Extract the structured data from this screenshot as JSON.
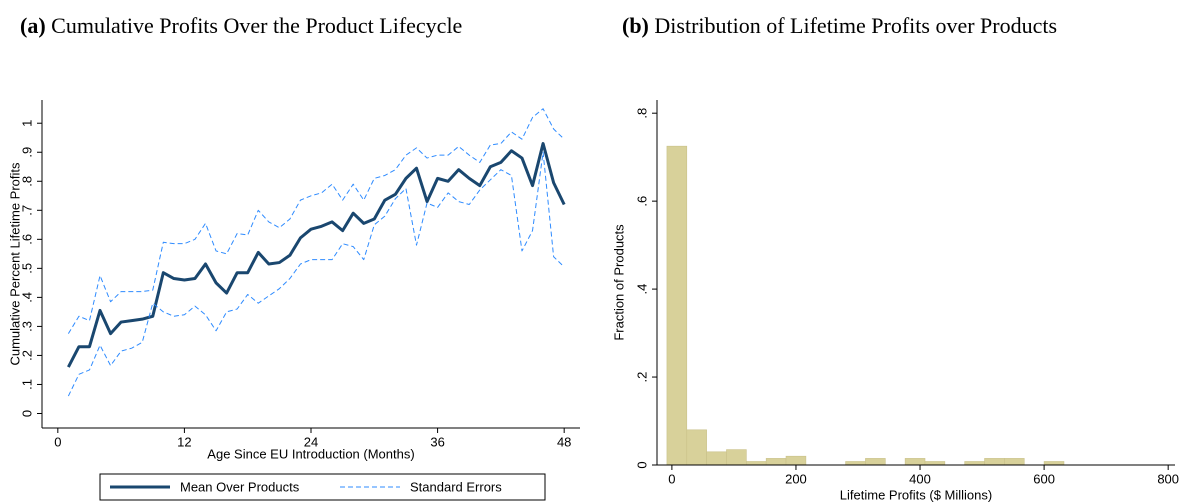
{
  "chart_data": [
    {
      "type": "line",
      "label": "(a)",
      "title": "Cumulative Profits Over the Product Lifecycle",
      "x_label": "Age Since EU Introduction (Months)",
      "y_label": "Cumulative Percent Lifetime Profits",
      "x": [
        1,
        2,
        3,
        4,
        5,
        6,
        7,
        8,
        9,
        10,
        11,
        12,
        13,
        14,
        15,
        16,
        17,
        18,
        19,
        20,
        21,
        22,
        23,
        24,
        25,
        26,
        27,
        28,
        29,
        30,
        31,
        32,
        33,
        34,
        35,
        36,
        37,
        38,
        39,
        40,
        41,
        42,
        43,
        44,
        45,
        46,
        47,
        48
      ],
      "series": [
        {
          "name": "Mean Over Products",
          "color": "#1a476f",
          "style": "solid",
          "values": [
            0.16,
            0.23,
            0.23,
            0.355,
            0.275,
            0.315,
            0.32,
            0.325,
            0.335,
            0.485,
            0.465,
            0.46,
            0.465,
            0.515,
            0.45,
            0.415,
            0.485,
            0.485,
            0.555,
            0.515,
            0.52,
            0.545,
            0.605,
            0.635,
            0.645,
            0.66,
            0.63,
            0.69,
            0.655,
            0.67,
            0.735,
            0.755,
            0.81,
            0.845,
            0.73,
            0.81,
            0.8,
            0.84,
            0.81,
            0.785,
            0.85,
            0.865,
            0.905,
            0.88,
            0.785,
            0.93,
            0.795,
            0.72
          ]
        },
        {
          "name": "Standard Errors",
          "color": "#2e8bff",
          "style": "dashed",
          "values": [
            0.275,
            0.335,
            0.32,
            0.475,
            0.385,
            0.42,
            0.42,
            0.42,
            0.425,
            0.59,
            0.585,
            0.585,
            0.6,
            0.655,
            0.56,
            0.55,
            0.62,
            0.615,
            0.7,
            0.66,
            0.64,
            0.67,
            0.735,
            0.75,
            0.76,
            0.79,
            0.735,
            0.79,
            0.735,
            0.81,
            0.82,
            0.84,
            0.89,
            0.915,
            0.88,
            0.89,
            0.89,
            0.92,
            0.89,
            0.865,
            0.925,
            0.93,
            0.97,
            0.945,
            1.02,
            1.05,
            0.98,
            0.945
          ]
        },
        {
          "color": "#2e8bff",
          "style": "dashed",
          "values": [
            0.06,
            0.135,
            0.15,
            0.235,
            0.165,
            0.215,
            0.225,
            0.245,
            0.38,
            0.35,
            0.335,
            0.34,
            0.37,
            0.34,
            0.285,
            0.35,
            0.36,
            0.41,
            0.38,
            0.405,
            0.43,
            0.465,
            0.515,
            0.53,
            0.53,
            0.53,
            0.585,
            0.575,
            0.53,
            0.65,
            0.68,
            0.74,
            0.775,
            0.58,
            0.725,
            0.71,
            0.76,
            0.73,
            0.72,
            0.77,
            0.805,
            0.84,
            0.82,
            0.56,
            0.63,
            0.9,
            0.54,
            0.505
          ]
        }
      ],
      "xlim": [
        -1.5,
        49.5
      ],
      "xticks": [
        0,
        12,
        24,
        36,
        48
      ],
      "ylim": [
        -0.05,
        1.08
      ],
      "yticks": [
        0,
        {
          "value": 0.1,
          "label": ".1"
        },
        {
          "value": 0.2,
          "label": ".2"
        },
        {
          "value": 0.3,
          "label": ".3"
        },
        {
          "value": 0.4,
          "label": ".4"
        },
        {
          "value": 0.5,
          "label": ".5"
        },
        {
          "value": 0.6,
          "label": ".6"
        },
        {
          "value": 0.7,
          "label": ".7"
        },
        {
          "value": 0.8,
          "label": ".8"
        },
        {
          "value": 0.9,
          "label": ".9"
        },
        1
      ],
      "legend": "bottom"
    },
    {
      "type": "histogram",
      "label": "(b)",
      "title": "Distribution of Lifetime Profits over Products",
      "x_label": "Lifetime Profits ($ Millions)",
      "y_label": "Fraction of Products",
      "bins": [
        -8,
        24,
        56,
        88,
        120,
        152,
        184,
        216,
        248,
        280,
        312,
        344,
        376,
        408,
        440,
        472,
        504,
        536,
        568,
        600,
        632
      ],
      "values": [
        0.725,
        0.08,
        0.03,
        0.035,
        0.008,
        0.015,
        0.02,
        0,
        0,
        0.008,
        0.015,
        0,
        0.015,
        0.008,
        0,
        0.008,
        0.015,
        0.015,
        0,
        0.008
      ],
      "color": "#d8d19a",
      "edge_color": "#c9c189",
      "xlim": [
        -24,
        811
      ],
      "xticks": [
        0,
        200,
        400,
        600,
        800
      ],
      "ylim": [
        0,
        0.83
      ],
      "yticks": [
        0,
        {
          "value": 0.2,
          "label": ".2"
        },
        {
          "value": 0.4,
          "label": ".4"
        },
        {
          "value": 0.6,
          "label": ".6"
        },
        {
          "value": 0.8,
          "label": ".8"
        }
      ]
    }
  ]
}
